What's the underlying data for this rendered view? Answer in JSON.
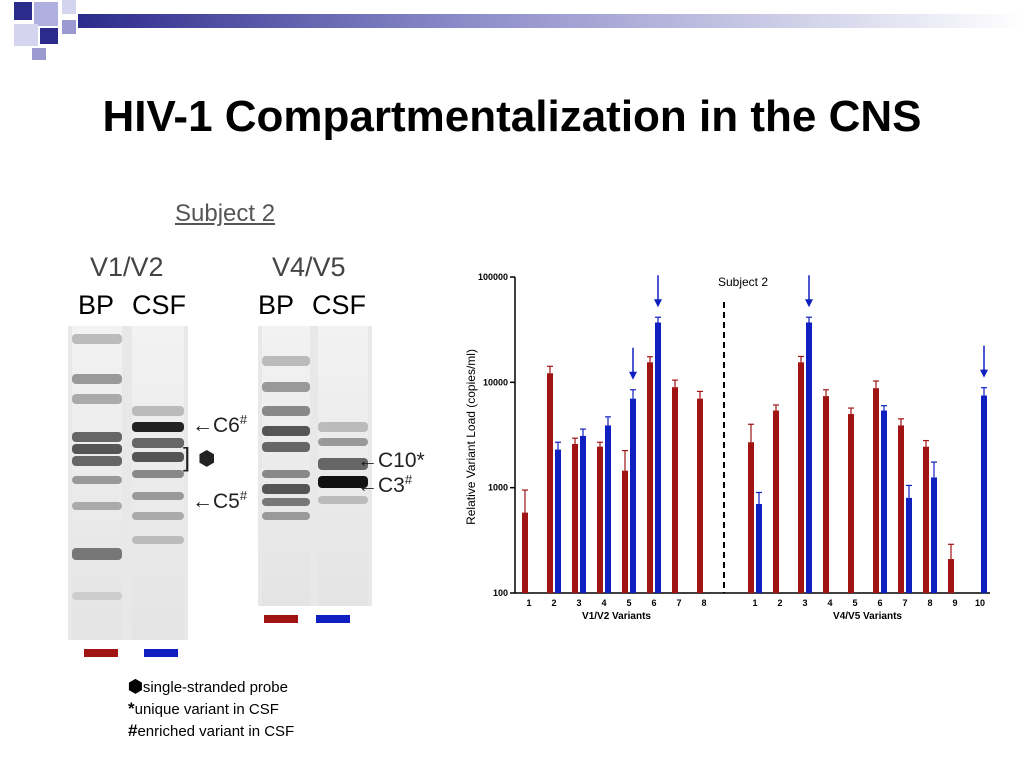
{
  "slide": {
    "title": "HIV-1 Compartmentalization in the CNS"
  },
  "gel": {
    "subject": "Subject 2",
    "region_left": "V1/V2",
    "region_right": "V4/V5",
    "lane_bp": "BP",
    "lane_csf": "CSF",
    "ann_c6": "C6",
    "ann_c5": "C5",
    "ann_c10": "C10*",
    "ann_c3": "C3",
    "hash": "#",
    "colors": {
      "bp": "#a11414",
      "csf": "#1020c0"
    }
  },
  "legend": {
    "items": [
      {
        "symbol": "●",
        "text": "single-stranded probe"
      },
      {
        "symbol": "*",
        "text": "unique variant in CSF"
      },
      {
        "symbol": "#",
        "text": "enriched variant in CSF"
      }
    ]
  },
  "chart_data": {
    "type": "bar",
    "title": "Subject 2",
    "ylabel": "Relative Variant Load (copies/ml)",
    "yscale": "log",
    "ylim": [
      100,
      100000
    ],
    "yticks": [
      "100",
      "1000",
      "10000",
      "100000"
    ],
    "colors": {
      "bp": "#a11414",
      "csf": "#1020c0"
    },
    "groups": [
      {
        "xlabel": "V1/V2 Variants",
        "categories": [
          "1",
          "2",
          "3",
          "4",
          "5",
          "6",
          "7",
          "8"
        ],
        "bp": [
          580,
          12200,
          2600,
          2450,
          1450,
          15500,
          9000,
          7000
        ],
        "bp_err": [
          950,
          14200,
          2950,
          2700,
          2250,
          17500,
          10500,
          8200
        ],
        "csf": [
          null,
          2300,
          3100,
          3900,
          7000,
          37000,
          null,
          null
        ],
        "csf_err": [
          null,
          2700,
          3600,
          4700,
          8500,
          41500,
          null,
          null
        ],
        "arrows": [
          5,
          6
        ]
      },
      {
        "xlabel": "V4/V5 Variants",
        "categories": [
          "1",
          "2",
          "3",
          "4",
          "5",
          "6",
          "7",
          "8",
          "9",
          "10"
        ],
        "bp": [
          2700,
          5400,
          15500,
          7400,
          5000,
          8800,
          3900,
          2450,
          210,
          null
        ],
        "bp_err": [
          4000,
          6100,
          17600,
          8500,
          5700,
          10300,
          4500,
          2800,
          290,
          null
        ],
        "csf": [
          700,
          null,
          37000,
          null,
          null,
          5400,
          800,
          1250,
          null,
          7500
        ],
        "csf_err": [
          900,
          null,
          41500,
          null,
          null,
          6000,
          1050,
          1750,
          null,
          8900
        ],
        "arrows": [
          3,
          10
        ]
      }
    ]
  }
}
